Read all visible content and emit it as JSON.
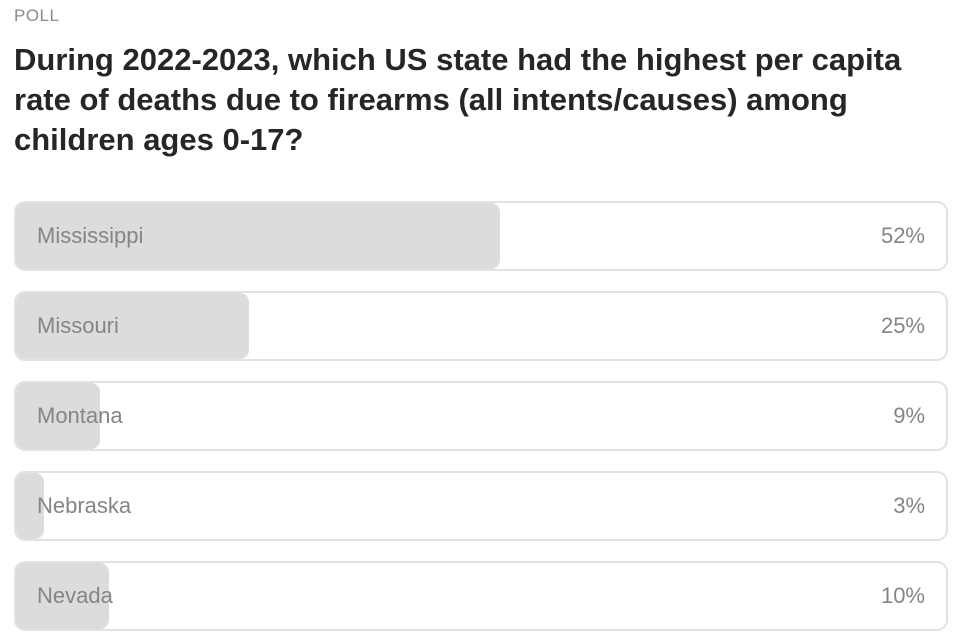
{
  "header": {
    "label": "POLL",
    "question": "During 2022-2023, which US state had the highest per capita rate of deaths due to firearms (all intents/causes) among children ages 0-17?"
  },
  "options": [
    {
      "name": "Mississippi",
      "value": 52,
      "label": "52%"
    },
    {
      "name": "Missouri",
      "value": 25,
      "label": "25%"
    },
    {
      "name": "Montana",
      "value": 9,
      "label": "9%"
    },
    {
      "name": "Nebraska",
      "value": 3,
      "label": "3%"
    },
    {
      "name": "Nevada",
      "value": 10,
      "label": "10%"
    }
  ]
}
